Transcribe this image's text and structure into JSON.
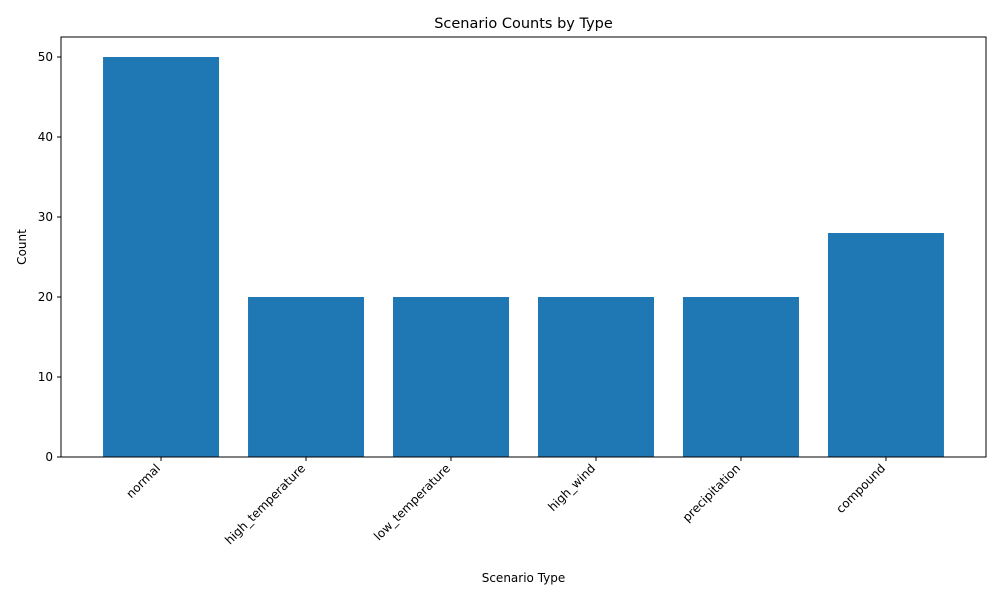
{
  "chart_data": {
    "type": "bar",
    "title": "Scenario Counts by Type",
    "xlabel": "Scenario Type",
    "ylabel": "Count",
    "categories": [
      "normal",
      "high_temperature",
      "low_temperature",
      "high_wind",
      "precipitation",
      "compound"
    ],
    "values": [
      50,
      20,
      20,
      20,
      20,
      28
    ],
    "ylim": [
      0,
      52.5
    ],
    "yticks": [
      0,
      10,
      20,
      30,
      40,
      50
    ],
    "grid": false,
    "legend": "none",
    "bar_color": "#1f77b4"
  }
}
